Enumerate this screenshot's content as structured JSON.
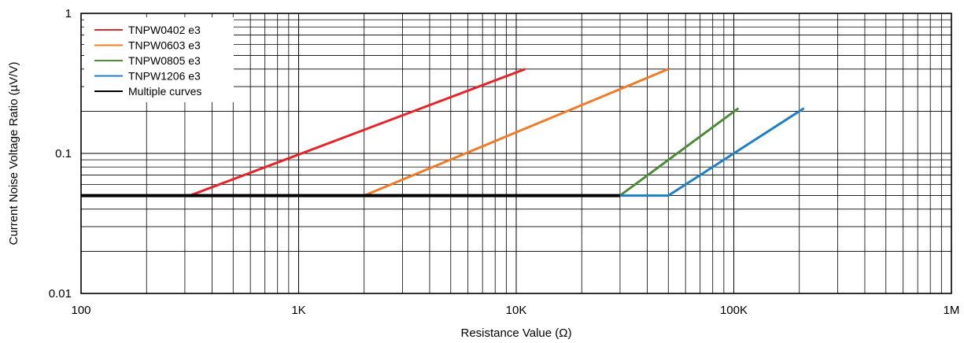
{
  "chart_data": {
    "type": "line",
    "xscale": "log",
    "yscale": "log",
    "xlim": [
      100,
      1000000
    ],
    "ylim": [
      0.01,
      1
    ],
    "xlabel": "Resistance Value (Ω)",
    "ylabel": "Current Noise Voltage Ratio (µV/V)",
    "grid": true,
    "legend_position": "top-left",
    "x_ticks": [
      {
        "value": 100,
        "label": "100"
      },
      {
        "value": 1000,
        "label": "1K"
      },
      {
        "value": 10000,
        "label": "10K"
      },
      {
        "value": 100000,
        "label": "100K"
      },
      {
        "value": 1000000,
        "label": "1M"
      }
    ],
    "y_ticks": [
      {
        "value": 0.01,
        "label": "0.01"
      },
      {
        "value": 0.1,
        "label": "0.1"
      },
      {
        "value": 1,
        "label": "1"
      }
    ],
    "series": [
      {
        "name": "TNPW0402 e3",
        "color": "#e3262b",
        "points": [
          [
            316,
            0.05
          ],
          [
            11000,
            0.4
          ]
        ]
      },
      {
        "name": "TNPW0603 e3",
        "color": "#f07c2a",
        "points": [
          [
            2000,
            0.05
          ],
          [
            50000,
            0.4
          ]
        ]
      },
      {
        "name": "TNPW0805 e3",
        "color": "#4f8a3c",
        "points": [
          [
            30000,
            0.05
          ],
          [
            105000,
            0.21
          ]
        ]
      },
      {
        "name": "TNPW1206 e3",
        "color": "#1f7fc4",
        "points": [
          [
            30000,
            0.05
          ],
          [
            50000,
            0.05
          ],
          [
            210000,
            0.21
          ]
        ]
      },
      {
        "name": "Multiple curves",
        "color": "#000000",
        "points": [
          [
            100,
            0.05
          ],
          [
            30000,
            0.05
          ]
        ]
      }
    ]
  }
}
